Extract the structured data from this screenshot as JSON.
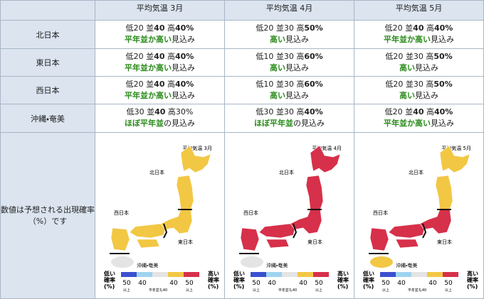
{
  "header": {
    "columns": [
      "平均気温 3月",
      "平均気温 4月",
      "平均気温 5月"
    ]
  },
  "table": {
    "rows": [
      {
        "region": "北日本",
        "cells": [
          {
            "probs": [
              {
                "label": "低",
                "value": "20",
                "bold": false
              },
              {
                "label": "並",
                "value": "40",
                "bold": true
              },
              {
                "label": "高",
                "value": "40%",
                "bold": true
              }
            ],
            "outlook": "平年並か高い",
            "suffix": "見込み"
          },
          {
            "probs": [
              {
                "label": "低",
                "value": "20",
                "bold": false
              },
              {
                "label": "並",
                "value": "30",
                "bold": false
              },
              {
                "label": "高",
                "value": "50%",
                "bold": true
              }
            ],
            "outlook": "高い",
            "suffix": "見込み"
          },
          {
            "probs": [
              {
                "label": "低",
                "value": "20",
                "bold": false
              },
              {
                "label": "並",
                "value": "40",
                "bold": true
              },
              {
                "label": "高",
                "value": "40%",
                "bold": true
              }
            ],
            "outlook": "平年並か高い",
            "suffix": "見込み"
          }
        ]
      },
      {
        "region": "東日本",
        "cells": [
          {
            "probs": [
              {
                "label": "低",
                "value": "20",
                "bold": false
              },
              {
                "label": "並",
                "value": "40",
                "bold": true
              },
              {
                "label": "高",
                "value": "40%",
                "bold": true
              }
            ],
            "outlook": "平年並か高い",
            "suffix": "見込み"
          },
          {
            "probs": [
              {
                "label": "低",
                "value": "10",
                "bold": false
              },
              {
                "label": "並",
                "value": "30",
                "bold": false
              },
              {
                "label": "高",
                "value": "60%",
                "bold": true
              }
            ],
            "outlook": "高い",
            "suffix": "見込み"
          },
          {
            "probs": [
              {
                "label": "低",
                "value": "20",
                "bold": false
              },
              {
                "label": "並",
                "value": "30",
                "bold": false
              },
              {
                "label": "高",
                "value": "50%",
                "bold": true
              }
            ],
            "outlook": "高い",
            "suffix": "見込み"
          }
        ]
      },
      {
        "region": "西日本",
        "cells": [
          {
            "probs": [
              {
                "label": "低",
                "value": "20",
                "bold": false
              },
              {
                "label": "並",
                "value": "40",
                "bold": true
              },
              {
                "label": "高",
                "value": "40%",
                "bold": true
              }
            ],
            "outlook": "平年並か高い",
            "suffix": "見込み"
          },
          {
            "probs": [
              {
                "label": "低",
                "value": "10",
                "bold": false
              },
              {
                "label": "並",
                "value": "30",
                "bold": false
              },
              {
                "label": "高",
                "value": "60%",
                "bold": true
              }
            ],
            "outlook": "高い",
            "suffix": "見込み"
          },
          {
            "probs": [
              {
                "label": "低",
                "value": "20",
                "bold": false
              },
              {
                "label": "並",
                "value": "30",
                "bold": false
              },
              {
                "label": "高",
                "value": "50%",
                "bold": true
              }
            ],
            "outlook": "高い",
            "suffix": "見込み"
          }
        ]
      },
      {
        "region": "沖縄・奄美",
        "cells": [
          {
            "probs": [
              {
                "label": "低",
                "value": "30",
                "bold": false
              },
              {
                "label": "並",
                "value": "40",
                "bold": true
              },
              {
                "label": "高",
                "value": "30%",
                "bold": false
              }
            ],
            "outlook": "ほぼ平年並",
            "suffix": "の見込み"
          },
          {
            "probs": [
              {
                "label": "低",
                "value": "30",
                "bold": false
              },
              {
                "label": "並",
                "value": "30",
                "bold": false
              },
              {
                "label": "高",
                "value": "40%",
                "bold": true
              }
            ],
            "outlook": "ほぼ平年並",
            "suffix": "の見込み"
          },
          {
            "probs": [
              {
                "label": "低",
                "value": "20",
                "bold": false
              },
              {
                "label": "並",
                "value": "40",
                "bold": true
              },
              {
                "label": "高",
                "value": "40%",
                "bold": true
              }
            ],
            "outlook": "平年並か高い",
            "suffix": "見込み"
          }
        ]
      }
    ]
  },
  "map_row": {
    "note": [
      "数値は予想される出現確率",
      "（%）です"
    ],
    "maps": [
      {
        "title": "平均気温 3月",
        "colors": {
          "north": "#f2c744",
          "east": "#f2c744",
          "west": "#f2c744",
          "okinawa": "#e4e4e4"
        }
      },
      {
        "title": "平均気温 4月",
        "colors": {
          "north": "#d7304a",
          "east": "#d7304a",
          "west": "#d7304a",
          "okinawa": "#e4e4e4"
        }
      },
      {
        "title": "平均気温 5月",
        "colors": {
          "north": "#f2c744",
          "east": "#d7304a",
          "west": "#d7304a",
          "okinawa": "#f2c744"
        }
      }
    ],
    "region_labels": {
      "north": "北日本",
      "east": "東日本",
      "west": "西日本",
      "okinawa": "沖縄・奄美"
    },
    "legend": {
      "low": [
        "低い",
        "確率",
        "(%)"
      ],
      "high": [
        "高い",
        "確率",
        "(%)"
      ],
      "ticks": [
        "50",
        "40",
        "40",
        "50"
      ],
      "above": "以上",
      "normal": "平年並も40",
      "colors": [
        "#3b4fd1",
        "#9fd4f0",
        "#e4e4e4",
        "#f2c744",
        "#d7304a"
      ]
    }
  }
}
